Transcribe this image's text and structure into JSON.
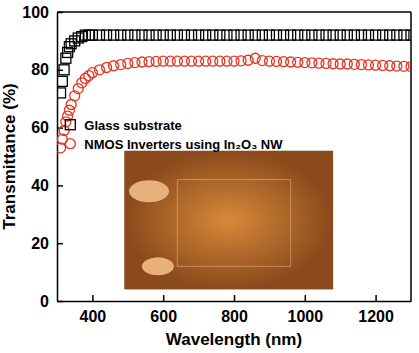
{
  "chart_data": {
    "type": "scatter",
    "x_label": "Wavelength (nm)",
    "y_label": "Transmittance (%)",
    "xlim": [
      300,
      1300
    ],
    "xticks": [
      400,
      600,
      800,
      1000,
      1200
    ],
    "ylim": [
      0,
      100
    ],
    "yticks": [
      0,
      20,
      40,
      60,
      80,
      100
    ],
    "legend": "center",
    "x": [
      310,
      315,
      320,
      325,
      330,
      335,
      340,
      350,
      360,
      370,
      380,
      390,
      400,
      420,
      440,
      460,
      480,
      500,
      520,
      540,
      560,
      580,
      600,
      620,
      640,
      660,
      680,
      700,
      720,
      740,
      760,
      780,
      800,
      820,
      840,
      860,
      880,
      900,
      920,
      940,
      960,
      980,
      1000,
      1020,
      1040,
      1060,
      1080,
      1100,
      1120,
      1140,
      1160,
      1180,
      1200,
      1220,
      1240,
      1260,
      1280,
      1300
    ],
    "series": [
      {
        "name": "Glass substrate",
        "color": "#000000",
        "marker": "square",
        "values": [
          72,
          76,
          80,
          84,
          86,
          88,
          89,
          90,
          91,
          91.5,
          92,
          92,
          92,
          92,
          92,
          92,
          92,
          92,
          92,
          92,
          92,
          92,
          92,
          92,
          92,
          92,
          92,
          92,
          92,
          92,
          92,
          92,
          92,
          92,
          92,
          92,
          92,
          92,
          92,
          92,
          92,
          92,
          92,
          92,
          92,
          92,
          92,
          92,
          92,
          92,
          92,
          92,
          92,
          92,
          92,
          92,
          92,
          92
        ]
      },
      {
        "name": "NMOS Inverters using In₂O₃ NW",
        "color": "#e53424",
        "marker": "circle",
        "values": [
          53,
          56,
          59,
          62,
          64,
          66,
          68,
          71,
          73.5,
          75.5,
          77,
          78,
          79,
          80,
          80.8,
          81.4,
          81.8,
          82.2,
          82.5,
          82.7,
          82.8,
          82.9,
          83,
          83,
          83,
          83,
          83,
          83,
          83,
          83,
          83,
          83,
          83,
          83.1,
          83.3,
          84,
          83.2,
          83,
          82.9,
          82.8,
          82.7,
          82.6,
          82.5,
          82.4,
          82.3,
          82.2,
          82.1,
          82,
          82,
          81.9,
          81.8,
          81.7,
          81.6,
          81.5,
          81.4,
          81.3,
          81.2,
          81.1
        ]
      }
    ]
  }
}
